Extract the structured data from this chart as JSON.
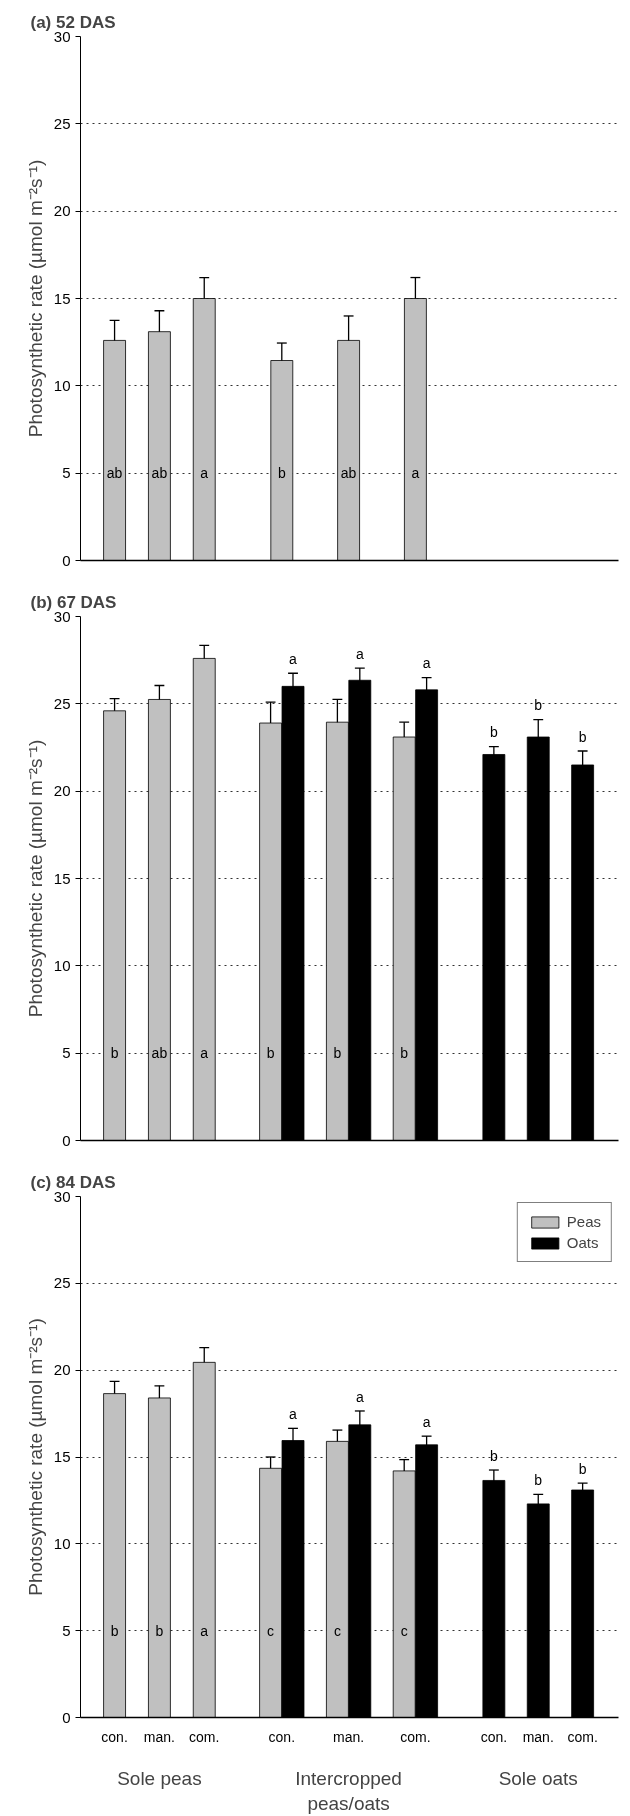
{
  "chart_data": [
    {
      "type": "bar",
      "title": "(a) 52 DAS",
      "ylabel": "Photosynthetic rate (µmol m⁻²s⁻¹)",
      "categories": [
        null,
        null,
        null,
        null,
        null,
        null,
        null,
        null,
        null
      ],
      "series": [
        {
          "color": "#c0c0c0",
          "values": [
            12.6,
            13.1,
            15.0,
            11.45,
            12.6,
            15.0,
            null,
            null,
            null
          ],
          "errors": [
            1.15,
            1.2,
            1.2,
            1.0,
            1.4,
            1.2,
            null,
            null,
            null
          ],
          "value_labels": [
            "ab",
            "ab",
            "a",
            "b",
            "ab",
            "a",
            null,
            null,
            null
          ]
        }
      ],
      "ylim": [
        0,
        30
      ],
      "yticks": [
        0,
        5,
        10,
        15,
        20,
        25,
        30
      ],
      "grid": "y",
      "legend": false
    },
    {
      "type": "bar",
      "title": "(b) 67 DAS",
      "ylabel": "Photosynthetic rate (µmol m⁻²s⁻¹)",
      "categories": [
        null,
        null,
        null,
        null,
        null,
        null,
        null,
        null,
        null
      ],
      "series": [
        {
          "color": "#c0c0c0",
          "values": [
            24.6,
            25.25,
            27.6,
            23.9,
            23.95,
            23.1,
            null,
            null,
            null
          ],
          "errors": [
            0.7,
            0.8,
            0.75,
            1.2,
            1.3,
            0.85,
            null,
            null,
            null
          ],
          "value_labels": [
            "b",
            "ab",
            "a",
            "b",
            "b",
            "b",
            null,
            null,
            null
          ]
        },
        {
          "color": "#000000",
          "values": [
            null,
            null,
            null,
            26.0,
            26.35,
            25.8,
            22.1,
            23.1,
            21.5
          ],
          "errors": [
            null,
            null,
            null,
            0.75,
            0.7,
            0.7,
            0.45,
            1.0,
            0.8
          ],
          "value_labels": [
            null,
            null,
            null,
            "a",
            "a",
            "a",
            "b",
            "b",
            "b"
          ]
        }
      ],
      "ylim": [
        0,
        30
      ],
      "yticks": [
        0,
        5,
        10,
        15,
        20,
        25,
        30
      ],
      "grid": "y",
      "legend": false
    },
    {
      "type": "bar",
      "title": "(c) 84 DAS",
      "ylabel": "Photosynthetic rate (µmol m⁻²s⁻¹)",
      "categories": [
        "con.",
        "man.",
        "com.",
        "con.",
        "man.",
        "com.",
        "con.",
        "man.",
        "com."
      ],
      "series": [
        {
          "name": "Peas",
          "color": "#c0c0c0",
          "values": [
            18.65,
            18.4,
            20.45,
            14.35,
            15.9,
            14.2,
            null,
            null,
            null
          ],
          "errors": [
            0.7,
            0.7,
            0.85,
            0.65,
            0.65,
            0.65,
            null,
            null,
            null
          ],
          "value_labels": [
            "b",
            "b",
            "a",
            "c",
            "c",
            "c",
            null,
            null,
            null
          ]
        },
        {
          "name": "Oats",
          "color": "#000000",
          "values": [
            null,
            null,
            null,
            15.95,
            16.85,
            15.7,
            13.65,
            12.3,
            13.1
          ],
          "errors": [
            null,
            null,
            null,
            0.7,
            0.8,
            0.5,
            0.6,
            0.55,
            0.4
          ],
          "value_labels": [
            null,
            null,
            null,
            "a",
            "a",
            "a",
            "b",
            "b",
            "b"
          ]
        }
      ],
      "annotations": [
        "Sole peas",
        "Intercropped\npeas/oats",
        "Sole oats"
      ],
      "ylim": [
        0,
        30
      ],
      "yticks": [
        0,
        5,
        10,
        15,
        20,
        25,
        30
      ],
      "grid": "y",
      "legend": "top right"
    }
  ]
}
